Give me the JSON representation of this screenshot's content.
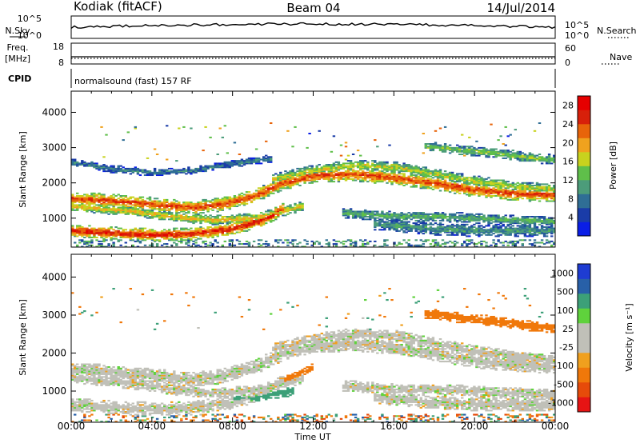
{
  "header": {
    "station": "Kodiak (fitACF)",
    "beam": "Beam 04",
    "date": "14/Jul/2014"
  },
  "strips": {
    "nsky_label": "N.Sky",
    "nsky_ticks": [
      "10^5",
      "10^0"
    ],
    "nsearch_label": "N.Search",
    "nsearch_ticks": [
      "10^5",
      "10^0"
    ],
    "freq_label": "Freq.",
    "freq_unit": "[MHz]",
    "freq_ticks": [
      "18",
      "8"
    ],
    "nave_label": "Nave",
    "nave_ticks": [
      "60",
      "0"
    ],
    "cpid_label": "CPID",
    "cpid_value": "normalsound (fast) 157 RF"
  },
  "colors": {
    "power": [
      "#0a1ee6",
      "#1a3ca8",
      "#2f6e95",
      "#4c9c7a",
      "#5fbf4a",
      "#c8d21e",
      "#f0a21e",
      "#e8640a",
      "#d8200a",
      "#e60000"
    ],
    "velocity": [
      "#e61414",
      "#e64b0a",
      "#f0780a",
      "#f0a01e",
      "#c0c0b8",
      "#c0c0b8",
      "#5fd23c",
      "#3ca078",
      "#2860a8",
      "#1e3cd2"
    ]
  },
  "chart_data": [
    {
      "type": "heatmap",
      "title": "Power",
      "xlabel": "Time UT",
      "ylabel": "Slant Range [km]",
      "xlim": [
        0,
        24
      ],
      "ylim": [
        180,
        4600
      ],
      "x_ticks": [
        "00:00",
        "04:00",
        "08:00",
        "12:00",
        "16:00",
        "20:00",
        "00:00"
      ],
      "y_ticks": [
        1000,
        2000,
        3000,
        4000
      ],
      "colorbar": {
        "label": "Power [dB]",
        "ticks": [
          4,
          8,
          12,
          16,
          20,
          24,
          28
        ],
        "range": [
          0,
          30
        ]
      },
      "features": [
        {
          "feature": "band",
          "points": [
            [
              0,
              1550
            ],
            [
              2,
              1500
            ],
            [
              4,
              1400
            ],
            [
              6,
              1300
            ],
            [
              7.5,
              1400
            ],
            [
              9,
              1600
            ],
            [
              10.5,
              2000
            ],
            [
              12,
              2200
            ],
            [
              14,
              2250
            ],
            [
              16,
              2150
            ],
            [
              18,
              2000
            ],
            [
              20,
              1800
            ],
            [
              22,
              1700
            ],
            [
              24,
              1650
            ]
          ],
          "width_km": 220,
          "peak_db": 24
        },
        {
          "feature": "band",
          "points": [
            [
              0,
              1350
            ],
            [
              3,
              1200
            ],
            [
              5,
              1050
            ],
            [
              7,
              950
            ],
            [
              9,
              1000
            ],
            [
              10.5,
              1200
            ],
            [
              11.5,
              1350
            ]
          ],
          "width_km": 160,
          "peak_db": 18
        },
        {
          "feature": "band",
          "points": [
            [
              0,
              650
            ],
            [
              2,
              580
            ],
            [
              4,
              530
            ],
            [
              6,
              560
            ],
            [
              8,
              700
            ],
            [
              9.5,
              950
            ],
            [
              10.5,
              1250
            ]
          ],
          "width_km": 200,
          "peak_db": 26
        },
        {
          "feature": "band",
          "points": [
            [
              13.5,
              1150
            ],
            [
              16,
              1050
            ],
            [
              18,
              1050
            ],
            [
              20,
              1000
            ],
            [
              22,
              950
            ],
            [
              24,
              900
            ]
          ],
          "width_km": 160,
          "peak_db": 12
        },
        {
          "feature": "band",
          "points": [
            [
              15,
              850
            ],
            [
              18,
              700
            ],
            [
              20.5,
              650
            ],
            [
              24,
              650
            ]
          ],
          "width_km": 200,
          "peak_db": 10
        },
        {
          "feature": "band",
          "points": [
            [
              10,
              2100
            ],
            [
              12,
              2350
            ],
            [
              14,
              2500
            ],
            [
              16,
              2450
            ],
            [
              18,
              2250
            ],
            [
              20,
              2050
            ],
            [
              22,
              1900
            ],
            [
              24,
              1800
            ]
          ],
          "width_km": 180,
          "peak_db": 16
        },
        {
          "feature": "band",
          "points": [
            [
              17.5,
              3050
            ],
            [
              19,
              2950
            ],
            [
              21,
              2850
            ],
            [
              23,
              2700
            ],
            [
              24,
              2650
            ]
          ],
          "width_km": 150,
          "peak_db": 14
        },
        {
          "feature": "band",
          "points": [
            [
              0,
              2600
            ],
            [
              2,
              2400
            ],
            [
              4,
              2300
            ],
            [
              6,
              2350
            ],
            [
              8,
              2550
            ],
            [
              10,
              2700
            ]
          ],
          "width_km": 120,
          "peak_db": 8
        }
      ]
    },
    {
      "type": "heatmap",
      "title": "Velocity",
      "xlabel": "Time UT",
      "ylabel": "Slant Range [km]",
      "xlim": [
        0,
        24
      ],
      "ylim": [
        180,
        4600
      ],
      "x_ticks": [
        "00:00",
        "04:00",
        "08:00",
        "12:00",
        "16:00",
        "20:00",
        "00:00"
      ],
      "y_ticks": [
        1000,
        2000,
        3000,
        4000
      ],
      "colorbar": {
        "label": "Velocity [m s⁻¹]",
        "ticks": [
          1000,
          500,
          100,
          25,
          -25,
          -100,
          -500,
          -1000
        ]
      },
      "features": [
        {
          "feature": "band",
          "points": [
            [
              0,
              1550
            ],
            [
              2,
              1500
            ],
            [
              4,
              1400
            ],
            [
              6,
              1300
            ],
            [
              7.5,
              1400
            ],
            [
              9,
              1600
            ],
            [
              10.5,
              2000
            ],
            [
              12,
              2200
            ],
            [
              14,
              2250
            ],
            [
              16,
              2150
            ],
            [
              18,
              2000
            ],
            [
              20,
              1800
            ],
            [
              22,
              1700
            ],
            [
              24,
              1650
            ]
          ],
          "width_km": 220,
          "velocity": 0
        },
        {
          "feature": "band",
          "points": [
            [
              0,
              1350
            ],
            [
              3,
              1200
            ],
            [
              5,
              1050
            ],
            [
              7,
              950
            ],
            [
              9,
              1000
            ],
            [
              10.5,
              1200
            ],
            [
              11.5,
              1350
            ]
          ],
          "width_km": 160,
          "velocity": 0
        },
        {
          "feature": "band",
          "points": [
            [
              0,
              650
            ],
            [
              2,
              580
            ],
            [
              4,
              530
            ],
            [
              6,
              560
            ],
            [
              8,
              700
            ],
            [
              9.5,
              950
            ],
            [
              10.5,
              1250
            ]
          ],
          "width_km": 200,
          "velocity": 0
        },
        {
          "feature": "band",
          "points": [
            [
              13.5,
              1150
            ],
            [
              16,
              1050
            ],
            [
              18,
              1050
            ],
            [
              20,
              1000
            ],
            [
              22,
              950
            ],
            [
              24,
              900
            ]
          ],
          "width_km": 160,
          "velocity": 0
        },
        {
          "feature": "band",
          "points": [
            [
              15,
              850
            ],
            [
              18,
              700
            ],
            [
              20.5,
              650
            ],
            [
              24,
              650
            ]
          ],
          "width_km": 200,
          "velocity": 0
        },
        {
          "feature": "band",
          "points": [
            [
              10,
              2100
            ],
            [
              12,
              2350
            ],
            [
              14,
              2500
            ],
            [
              16,
              2450
            ],
            [
              18,
              2250
            ],
            [
              20,
              2050
            ],
            [
              22,
              1900
            ],
            [
              24,
              1800
            ]
          ],
          "width_km": 180,
          "velocity": 0
        },
        {
          "feature": "band",
          "points": [
            [
              17.5,
              3050
            ],
            [
              19,
              2950
            ],
            [
              21,
              2850
            ],
            [
              23,
              2700
            ],
            [
              24,
              2650
            ]
          ],
          "width_km": 150,
          "velocity": -200
        },
        {
          "feature": "band",
          "points": [
            [
              8,
              780
            ],
            [
              9,
              830
            ],
            [
              10,
              900
            ],
            [
              11,
              1000
            ]
          ],
          "width_km": 130,
          "velocity": 150
        },
        {
          "feature": "band",
          "points": [
            [
              10.5,
              1250
            ],
            [
              11.5,
              1500
            ],
            [
              12,
              1650
            ]
          ],
          "width_km": 120,
          "velocity": -200
        }
      ]
    }
  ]
}
